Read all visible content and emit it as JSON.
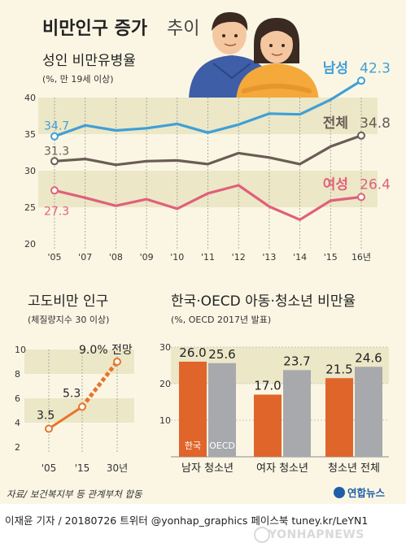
{
  "title_main": "비만인구 증가",
  "title_sub": "추이",
  "source": "자료/ 보건복지부 등 관계부처 합동",
  "logo_text": "연합뉴스",
  "credit": "이재윤 기자 / 20180726  트위터 @yonhap_graphics  페이스북 tuney.kr/LeYN1",
  "watermark": "YONHAPNEWS",
  "colors": {
    "male": "#3f9fd6",
    "total": "#6b5c55",
    "female": "#e0607a",
    "projection": "#e8742c",
    "korea_bar": "#e0652b",
    "oecd_bar": "#a7a9ac",
    "band": "#ece7c7"
  },
  "chart_data": [
    {
      "type": "line",
      "title": "성인 비만유병율",
      "subtitle": "(%, 만 19세 이상)",
      "categories": [
        "'05",
        "'07",
        "'08",
        "'09",
        "'10",
        "'11",
        "'12",
        "'13",
        "'14",
        "'15",
        "16년"
      ],
      "ylim": [
        20,
        40
      ],
      "yticks": [
        "20",
        "25",
        "30",
        "35",
        "40"
      ],
      "series": [
        {
          "name": "남성",
          "key": "male",
          "values": [
            34.7,
            36.2,
            35.5,
            35.8,
            36.4,
            35.2,
            36.3,
            37.8,
            37.7,
            39.7,
            42.3
          ],
          "start_label": "34.7",
          "end_label": "42.3"
        },
        {
          "name": "전체",
          "key": "total",
          "values": [
            31.3,
            31.6,
            30.8,
            31.3,
            31.4,
            30.9,
            32.4,
            31.8,
            30.9,
            33.3,
            34.8
          ],
          "start_label": "31.3",
          "end_label": "34.8"
        },
        {
          "name": "여성",
          "key": "female",
          "values": [
            27.3,
            26.3,
            25.2,
            26.1,
            24.8,
            26.9,
            28.0,
            25.1,
            23.3,
            25.9,
            26.4
          ],
          "start_label": "27.3",
          "end_label": "26.4"
        }
      ]
    },
    {
      "type": "line",
      "title": "고도비만 인구",
      "subtitle": "(체질량지수 30 이상)",
      "categories": [
        "'05",
        "'15",
        "30년"
      ],
      "ylim": [
        2,
        10
      ],
      "yticks": [
        "2",
        "4",
        "6",
        "8",
        "10"
      ],
      "series": [
        {
          "name": "",
          "values": [
            3.5,
            5.3,
            9.0
          ],
          "labels": [
            "3.5",
            "5.3",
            "9.0% 전망"
          ]
        }
      ]
    },
    {
      "type": "bar",
      "title": "한국·OECD 아동·청소년 비만율",
      "subtitle": "(%, OECD 2017년 발표)",
      "categories": [
        "남자 청소년",
        "여자 청소년",
        "청소년 전체"
      ],
      "ylim": [
        0,
        30
      ],
      "yticks": [
        "10",
        "20",
        "30"
      ],
      "series": [
        {
          "name": "한국",
          "key": "korea",
          "values": [
            26.0,
            17.0,
            21.5
          ],
          "labels": [
            "26.0",
            "17.0",
            "21.5"
          ]
        },
        {
          "name": "OECD",
          "key": "oecd",
          "values": [
            25.6,
            23.7,
            24.6
          ],
          "labels": [
            "25.6",
            "23.7",
            "24.6"
          ]
        }
      ]
    }
  ]
}
